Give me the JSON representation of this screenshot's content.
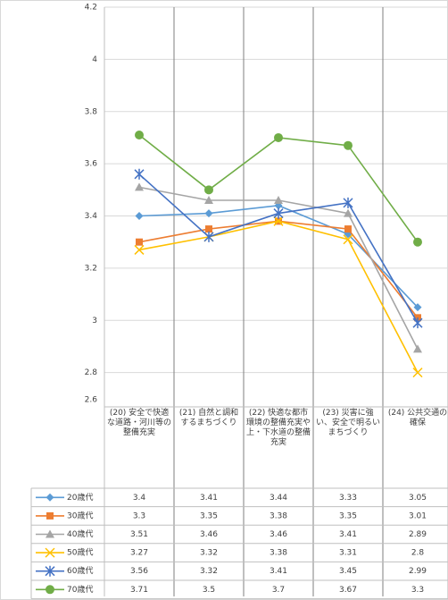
{
  "chart_data": {
    "type": "line",
    "categories": [
      "(20) 安全で快適な道路・河川等の整備充実",
      "(21) 自然と調和するまちづくり",
      "(22) 快適な都市環境の整備充実や上・下水道の整備充実",
      "(23) 災害に強い、安全で明るいまちづくり",
      "(24) 公共交通の確保"
    ],
    "series": [
      {
        "name": "20歳代",
        "color": "#5b9bd5",
        "marker": "diamond",
        "values": [
          3.4,
          3.41,
          3.44,
          3.33,
          3.05
        ]
      },
      {
        "name": "30歳代",
        "color": "#ed7d31",
        "marker": "square",
        "values": [
          3.3,
          3.35,
          3.38,
          3.35,
          3.01
        ]
      },
      {
        "name": "40歳代",
        "color": "#a5a5a5",
        "marker": "triangle",
        "values": [
          3.51,
          3.46,
          3.46,
          3.41,
          2.89
        ]
      },
      {
        "name": "50歳代",
        "color": "#ffc000",
        "marker": "x",
        "values": [
          3.27,
          3.32,
          3.38,
          3.31,
          2.8
        ]
      },
      {
        "name": "60歳代",
        "color": "#4472c4",
        "marker": "star",
        "values": [
          3.56,
          3.32,
          3.41,
          3.45,
          2.99
        ]
      },
      {
        "name": "70歳代",
        "color": "#70ad47",
        "marker": "circle",
        "values": [
          3.71,
          3.5,
          3.7,
          3.67,
          3.3
        ]
      }
    ],
    "ylim": [
      2.6,
      4.2
    ],
    "yticks": [
      2.6,
      2.8,
      3,
      3.2,
      3.4,
      3.6,
      3.8,
      4,
      4.2
    ],
    "grid": true,
    "data_table": true
  }
}
